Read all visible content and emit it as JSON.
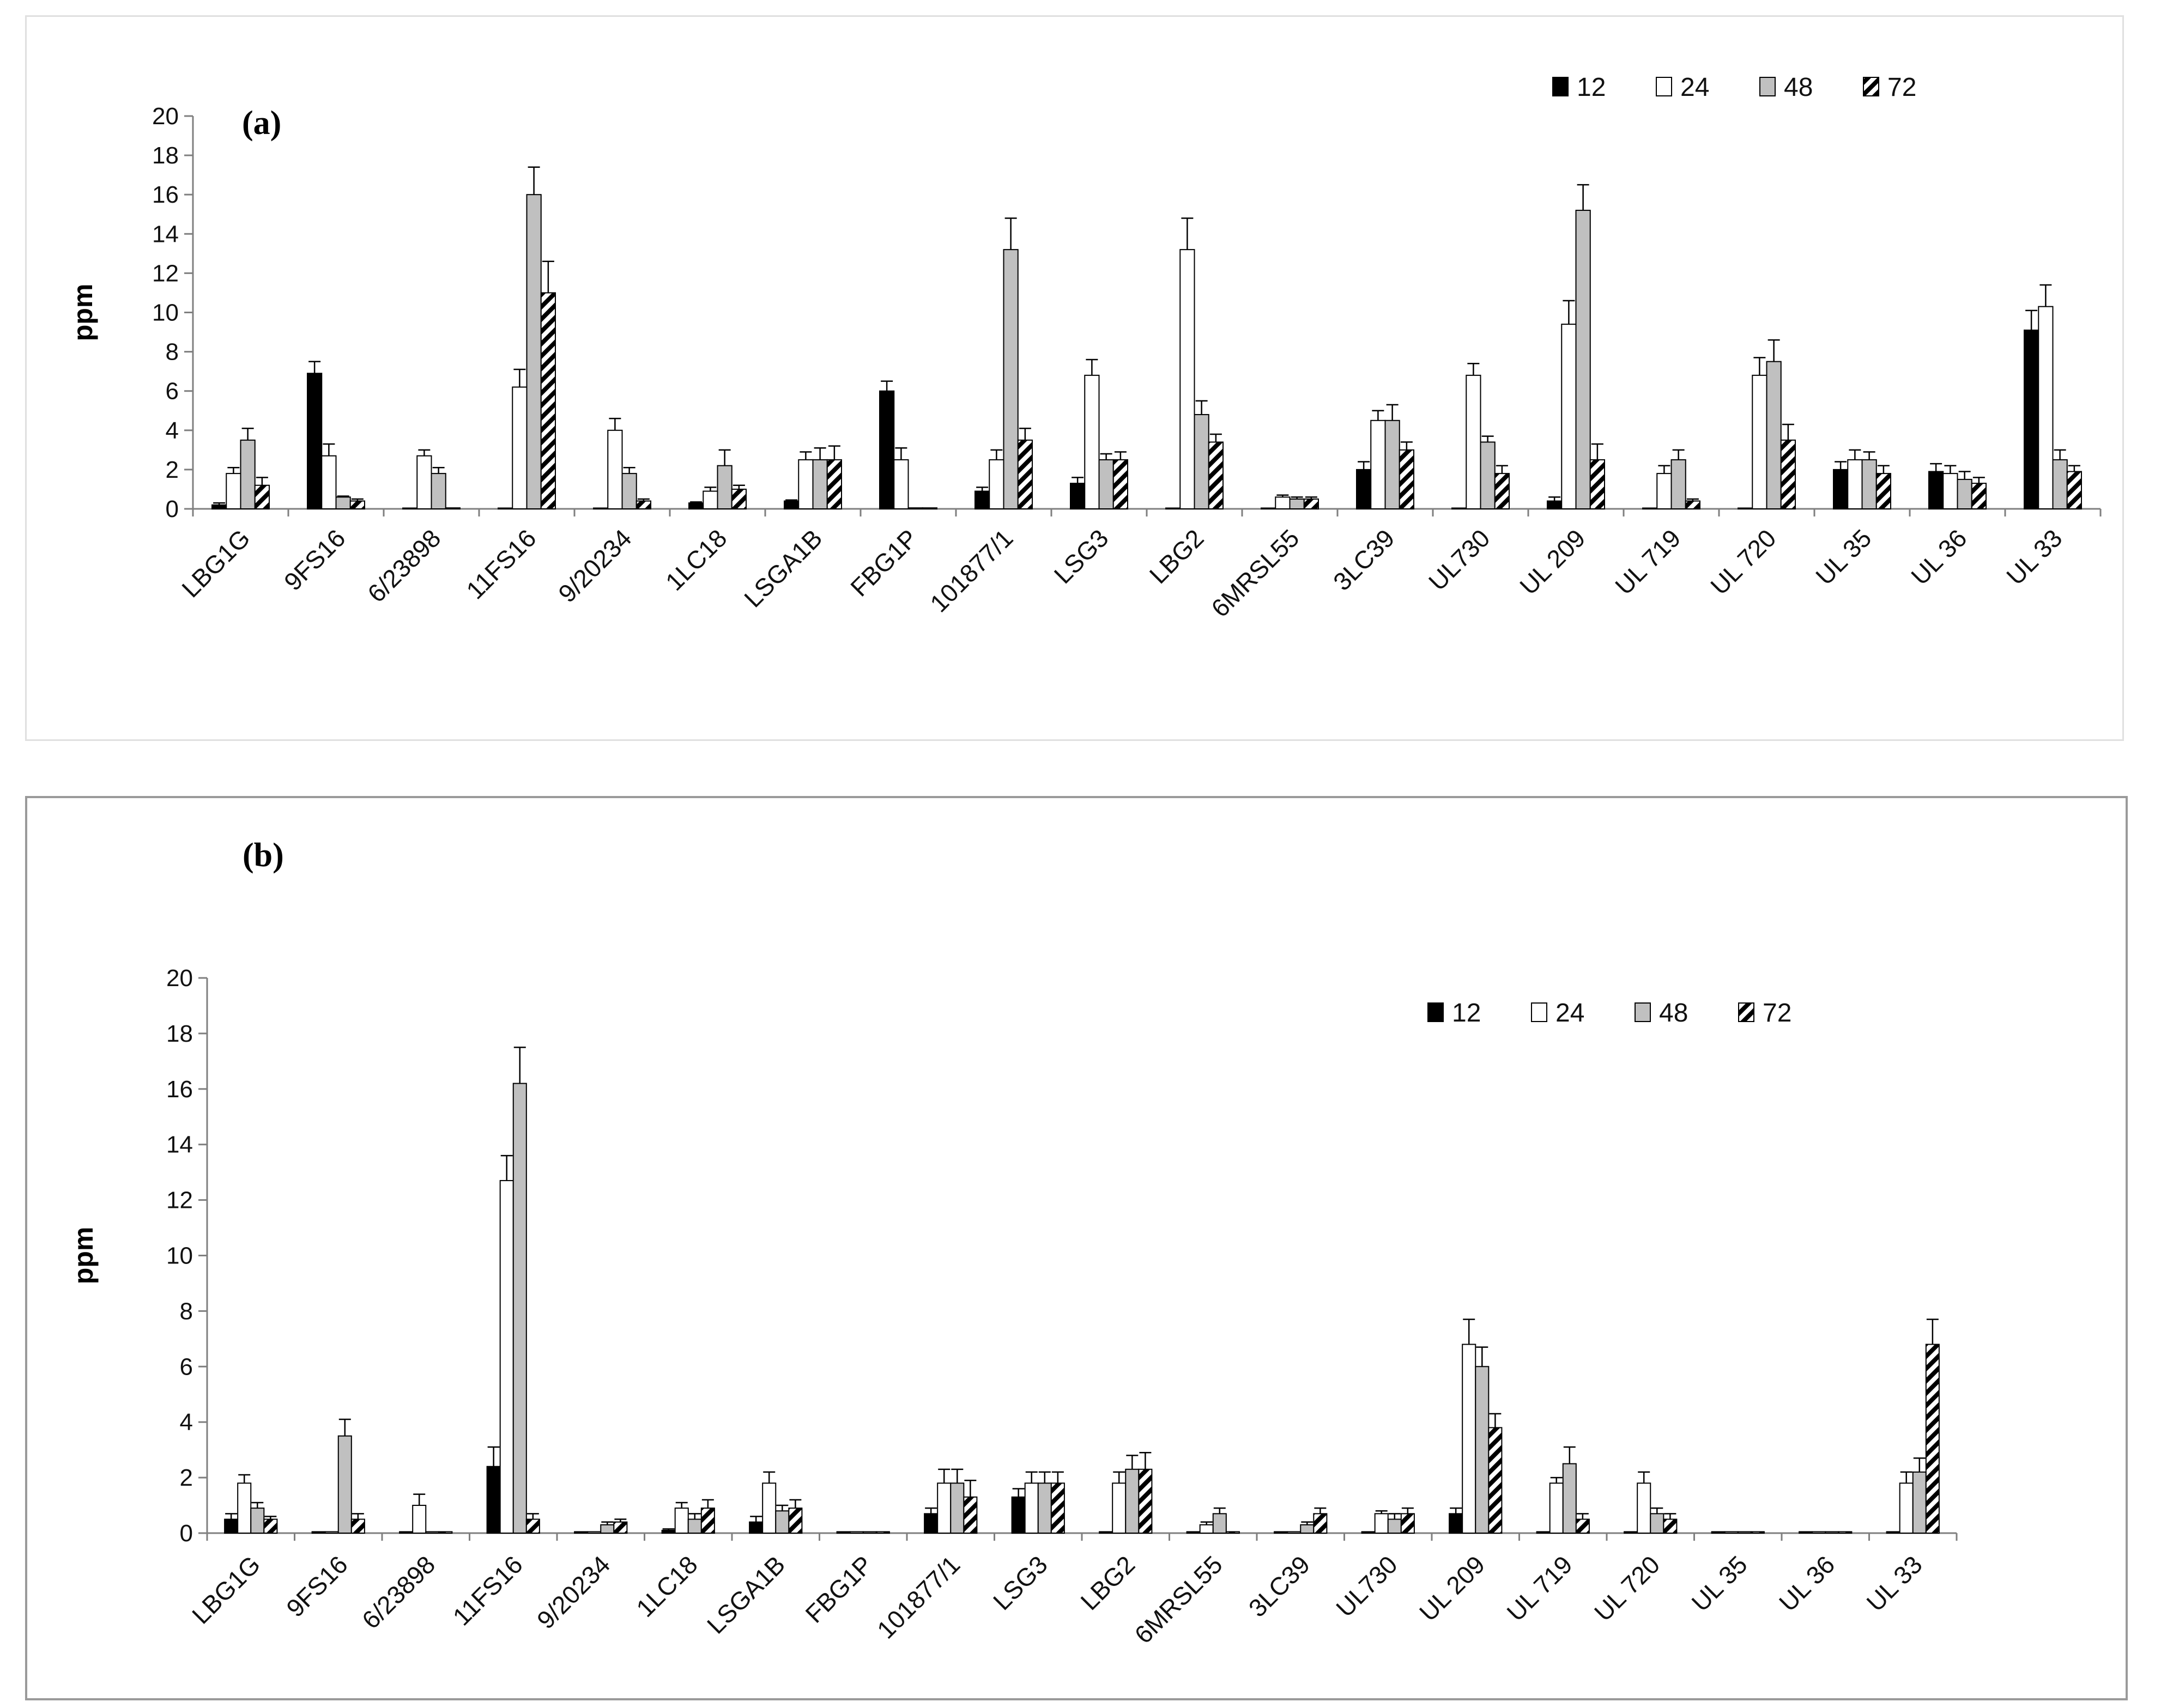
{
  "colors": {
    "s12": "#000000",
    "s24": "#ffffff",
    "s48": "#c0c0c0",
    "s72_hatch": "#000000",
    "axis": "#7f7f7f",
    "outline": "#000000"
  },
  "chart_data": [
    {
      "type": "bar",
      "panel_label": "(a)",
      "ylabel": "ppm",
      "xlabel": "",
      "ylim": [
        0,
        20
      ],
      "yticks": [
        "0",
        "2",
        "4",
        "6",
        "8",
        "10",
        "12",
        "14",
        "16",
        "18",
        "20"
      ],
      "legend_position": "top-right",
      "categories": [
        "LBG1G",
        "9FS16",
        "6/23898",
        "11FS16",
        "9/20234",
        "1LC18",
        "LSGA1B",
        "FBG1P",
        "101877/1",
        "LSG3",
        "LBG2",
        "6MRSL55",
        "3LC39",
        "UL730",
        "UL 209",
        "UL 719",
        "UL 720",
        "UL 35",
        "UL 36",
        "UL 33"
      ],
      "series": [
        {
          "name": "12",
          "fill": "solid-black",
          "values": [
            0.2,
            6.9,
            0.0,
            0.0,
            0.0,
            0.3,
            0.4,
            6.0,
            0.9,
            1.3,
            0.0,
            0.0,
            2.0,
            0.0,
            0.4,
            0.0,
            0.0,
            2.0,
            1.9,
            9.1
          ],
          "errors": [
            0.1,
            0.6,
            0.0,
            0.0,
            0.0,
            0.05,
            0.05,
            0.5,
            0.2,
            0.3,
            0.0,
            0.0,
            0.4,
            0.0,
            0.2,
            0.0,
            0.0,
            0.4,
            0.4,
            1.0
          ]
        },
        {
          "name": "24",
          "fill": "white",
          "values": [
            1.8,
            2.7,
            2.7,
            6.2,
            4.0,
            0.9,
            2.5,
            2.5,
            2.5,
            6.8,
            13.2,
            0.6,
            4.5,
            6.8,
            9.4,
            1.8,
            6.8,
            2.5,
            1.8,
            10.3
          ],
          "errors": [
            0.3,
            0.6,
            0.3,
            0.9,
            0.6,
            0.2,
            0.4,
            0.6,
            0.5,
            0.8,
            1.6,
            0.1,
            0.5,
            0.6,
            1.2,
            0.4,
            0.9,
            0.5,
            0.4,
            1.1
          ]
        },
        {
          "name": "48",
          "fill": "light-grey",
          "values": [
            3.5,
            0.6,
            1.8,
            16.0,
            1.8,
            2.2,
            2.5,
            0.05,
            13.2,
            2.5,
            4.8,
            0.5,
            4.5,
            3.4,
            15.2,
            2.5,
            7.5,
            2.5,
            1.5,
            2.5
          ],
          "errors": [
            0.6,
            0.05,
            0.3,
            1.4,
            0.3,
            0.8,
            0.6,
            0.0,
            1.6,
            0.3,
            0.7,
            0.1,
            0.8,
            0.3,
            1.3,
            0.5,
            1.1,
            0.4,
            0.4,
            0.5
          ]
        },
        {
          "name": "72",
          "fill": "diagonal-hatch",
          "values": [
            1.2,
            0.4,
            0.05,
            11.0,
            0.4,
            1.0,
            2.5,
            0.05,
            3.5,
            2.5,
            3.4,
            0.5,
            3.0,
            1.8,
            2.5,
            0.4,
            3.5,
            1.8,
            1.3,
            1.9
          ],
          "errors": [
            0.4,
            0.1,
            0.0,
            1.6,
            0.1,
            0.2,
            0.7,
            0.0,
            0.6,
            0.4,
            0.4,
            0.1,
            0.4,
            0.4,
            0.8,
            0.1,
            0.8,
            0.4,
            0.3,
            0.3
          ]
        }
      ]
    },
    {
      "type": "bar",
      "panel_label": "(b)",
      "ylabel": "ppm",
      "xlabel": "",
      "ylim": [
        0,
        20
      ],
      "yticks": [
        "0",
        "2",
        "4",
        "6",
        "8",
        "10",
        "12",
        "14",
        "16",
        "18",
        "20"
      ],
      "legend_position": "top-right",
      "categories": [
        "LBG1G",
        "9FS16",
        "6/23898",
        "11FS16",
        "9/20234",
        "1LC18",
        "LSGA1B",
        "FBG1P",
        "101877/1",
        "LSG3",
        "LBG2",
        "6MRSL55",
        "3LC39",
        "UL730",
        "UL 209",
        "UL 719",
        "UL 720",
        "UL 35",
        "UL 36",
        "UL 33"
      ],
      "series": [
        {
          "name": "12",
          "fill": "solid-black",
          "values": [
            0.5,
            0.05,
            0.05,
            2.4,
            0.05,
            0.1,
            0.4,
            0.05,
            0.7,
            1.3,
            0.05,
            0.05,
            0.05,
            0.05,
            0.7,
            0.05,
            0.05,
            0.05,
            0.05,
            0.05
          ],
          "errors": [
            0.2,
            0.0,
            0.0,
            0.7,
            0.0,
            0.05,
            0.2,
            0.0,
            0.2,
            0.3,
            0.0,
            0.0,
            0.0,
            0.0,
            0.2,
            0.0,
            0.0,
            0.0,
            0.0,
            0.0
          ]
        },
        {
          "name": "24",
          "fill": "white",
          "values": [
            1.8,
            0.05,
            1.0,
            12.7,
            0.05,
            0.9,
            1.8,
            0.05,
            1.8,
            1.8,
            1.8,
            0.3,
            0.05,
            0.7,
            6.8,
            1.8,
            1.8,
            0.05,
            0.05,
            1.8
          ],
          "errors": [
            0.3,
            0.0,
            0.4,
            0.9,
            0.0,
            0.2,
            0.4,
            0.0,
            0.5,
            0.4,
            0.4,
            0.1,
            0.0,
            0.1,
            0.9,
            0.2,
            0.4,
            0.0,
            0.0,
            0.4
          ]
        },
        {
          "name": "48",
          "fill": "light-grey",
          "values": [
            0.9,
            3.5,
            0.05,
            16.2,
            0.3,
            0.5,
            0.8,
            0.05,
            1.8,
            1.8,
            2.3,
            0.7,
            0.3,
            0.5,
            6.0,
            2.5,
            0.7,
            0.05,
            0.05,
            2.2
          ],
          "errors": [
            0.2,
            0.6,
            0.0,
            1.3,
            0.1,
            0.2,
            0.2,
            0.0,
            0.5,
            0.4,
            0.5,
            0.2,
            0.1,
            0.2,
            0.7,
            0.6,
            0.2,
            0.0,
            0.0,
            0.5
          ]
        },
        {
          "name": "72",
          "fill": "diagonal-hatch",
          "values": [
            0.5,
            0.5,
            0.05,
            0.5,
            0.4,
            0.9,
            0.9,
            0.05,
            1.3,
            1.8,
            2.3,
            0.05,
            0.7,
            0.7,
            3.8,
            0.5,
            0.5,
            0.05,
            0.05,
            6.8
          ],
          "errors": [
            0.1,
            0.2,
            0.0,
            0.2,
            0.1,
            0.3,
            0.3,
            0.0,
            0.6,
            0.4,
            0.6,
            0.0,
            0.2,
            0.2,
            0.5,
            0.2,
            0.2,
            0.0,
            0.0,
            0.9
          ]
        }
      ]
    }
  ]
}
